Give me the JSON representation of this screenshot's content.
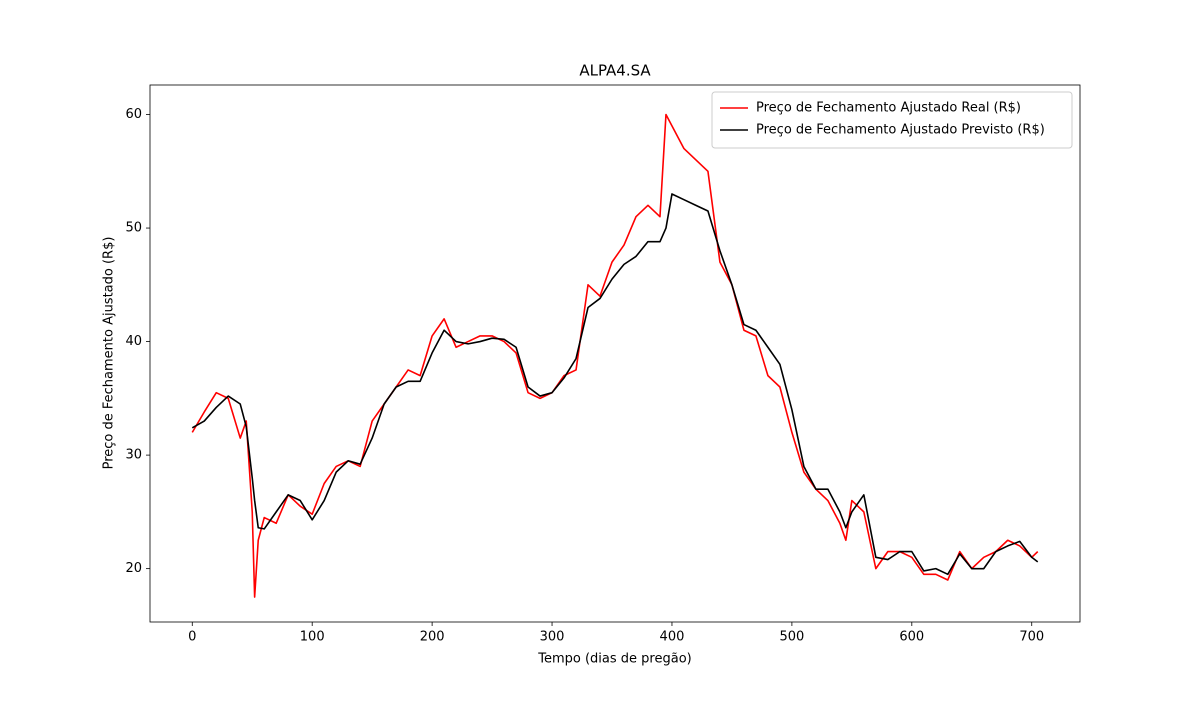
{
  "chart_data": {
    "type": "line",
    "title": "ALPA4.SA",
    "x_label": "Tempo (dias de pregão)",
    "y_label": "Preço de Fechamento Ajustado (R$)",
    "x": [
      0,
      10,
      20,
      30,
      40,
      45,
      50,
      52,
      55,
      60,
      70,
      80,
      90,
      100,
      110,
      120,
      130,
      140,
      150,
      160,
      170,
      180,
      190,
      200,
      210,
      220,
      230,
      240,
      250,
      260,
      270,
      280,
      290,
      300,
      310,
      320,
      330,
      340,
      350,
      360,
      370,
      380,
      390,
      395,
      400,
      410,
      420,
      430,
      440,
      450,
      460,
      470,
      480,
      490,
      500,
      510,
      520,
      530,
      540,
      545,
      550,
      560,
      570,
      580,
      590,
      600,
      610,
      620,
      630,
      640,
      650,
      660,
      670,
      680,
      690,
      700,
      705
    ],
    "series": [
      {
        "name": "Preço de Fechamento Ajustado Real (R$)",
        "color": "#ff0000",
        "values": [
          32,
          33.8,
          35.5,
          35,
          31.5,
          33,
          25,
          17.5,
          22.5,
          24.5,
          24,
          26.5,
          25.5,
          24.8,
          27.5,
          29,
          29.5,
          29,
          33,
          34.5,
          36,
          37.5,
          37,
          40.5,
          42,
          39.5,
          40,
          40.5,
          40.5,
          40,
          39,
          35.5,
          35,
          35.5,
          37,
          37.5,
          45,
          44,
          47,
          48.5,
          51,
          52,
          51,
          60,
          59,
          57,
          56,
          55,
          47,
          45,
          41,
          40.5,
          37,
          36,
          32,
          28.5,
          27,
          26,
          24,
          22.5,
          26,
          25,
          20,
          21.5,
          21.5,
          21,
          19.5,
          19.5,
          19,
          21.5,
          20,
          21,
          21.5,
          22.5,
          22,
          21,
          21.5
        ]
      },
      {
        "name": "Preço de Fechamento Ajustado Previsto (R$)",
        "color": "#000000",
        "values": [
          32.4,
          33,
          34.2,
          35.2,
          34.5,
          32.5,
          28,
          26,
          23.6,
          23.5,
          25,
          26.5,
          26,
          24.3,
          26,
          28.5,
          29.5,
          29.2,
          31.5,
          34.5,
          36,
          36.5,
          36.5,
          39,
          41,
          40,
          39.8,
          40,
          40.3,
          40.2,
          39.5,
          36,
          35.2,
          35.5,
          36.8,
          38.5,
          43,
          43.8,
          45.5,
          46.8,
          47.5,
          48.8,
          48.8,
          50,
          53,
          52.5,
          52,
          51.5,
          48,
          45,
          41.5,
          41,
          39.5,
          38,
          34,
          29,
          27,
          27,
          25,
          23.6,
          25,
          26.5,
          21,
          20.8,
          21.5,
          21.5,
          19.8,
          20,
          19.5,
          21.3,
          20,
          20,
          21.5,
          22,
          22.4,
          21,
          20.6
        ]
      }
    ],
    "xlim": [
      -35.25,
      740.25
    ],
    "xticks": [
      0,
      100,
      200,
      300,
      400,
      500,
      600,
      700
    ],
    "ylim": [
      15.3,
      62.6
    ],
    "yticks": [
      20,
      30,
      40,
      50,
      60
    ],
    "grid": false,
    "legend": "upper right"
  }
}
